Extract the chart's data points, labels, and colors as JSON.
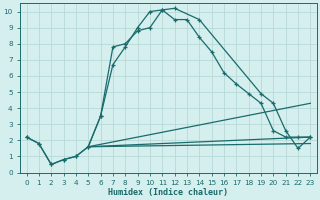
{
  "xlabel": "Humidex (Indice chaleur)",
  "xlim": [
    -0.5,
    23.5
  ],
  "ylim": [
    0,
    10.5
  ],
  "xticks": [
    0,
    1,
    2,
    3,
    4,
    5,
    6,
    7,
    8,
    9,
    10,
    11,
    12,
    13,
    14,
    15,
    16,
    17,
    18,
    19,
    20,
    21,
    22,
    23
  ],
  "yticks": [
    0,
    1,
    2,
    3,
    4,
    5,
    6,
    7,
    8,
    9,
    10
  ],
  "bg_color": "#d5eeee",
  "grid_color": "#b8d8d8",
  "line_color": "#1a6b6b",
  "line1_x": [
    0,
    1,
    2,
    3,
    4,
    5,
    6,
    7,
    8,
    9,
    10,
    11,
    12,
    13,
    14,
    15,
    16,
    17,
    18,
    19,
    20,
    21,
    22,
    23
  ],
  "line1_y": [
    2.2,
    1.8,
    0.5,
    0.8,
    1.0,
    1.6,
    3.5,
    6.7,
    7.8,
    9.0,
    10.0,
    10.1,
    9.5,
    9.5,
    8.4,
    7.5,
    6.2,
    5.5,
    4.9,
    4.3,
    2.6,
    2.2,
    2.2,
    2.2
  ],
  "line2_x": [
    0,
    1,
    2,
    3,
    4,
    5,
    6,
    7,
    8,
    9,
    10,
    11,
    12,
    14,
    19,
    20,
    21,
    22,
    23
  ],
  "line2_y": [
    2.2,
    1.8,
    0.5,
    0.8,
    1.0,
    1.6,
    3.5,
    7.8,
    8.0,
    8.8,
    9.0,
    10.1,
    10.2,
    9.5,
    4.9,
    4.3,
    2.6,
    1.5,
    2.2
  ],
  "line3_x": [
    5,
    23
  ],
  "line3_y": [
    1.6,
    4.3
  ],
  "line4_x": [
    5,
    23
  ],
  "line4_y": [
    1.6,
    2.2
  ],
  "line5_x": [
    5,
    23
  ],
  "line5_y": [
    1.6,
    1.8
  ]
}
